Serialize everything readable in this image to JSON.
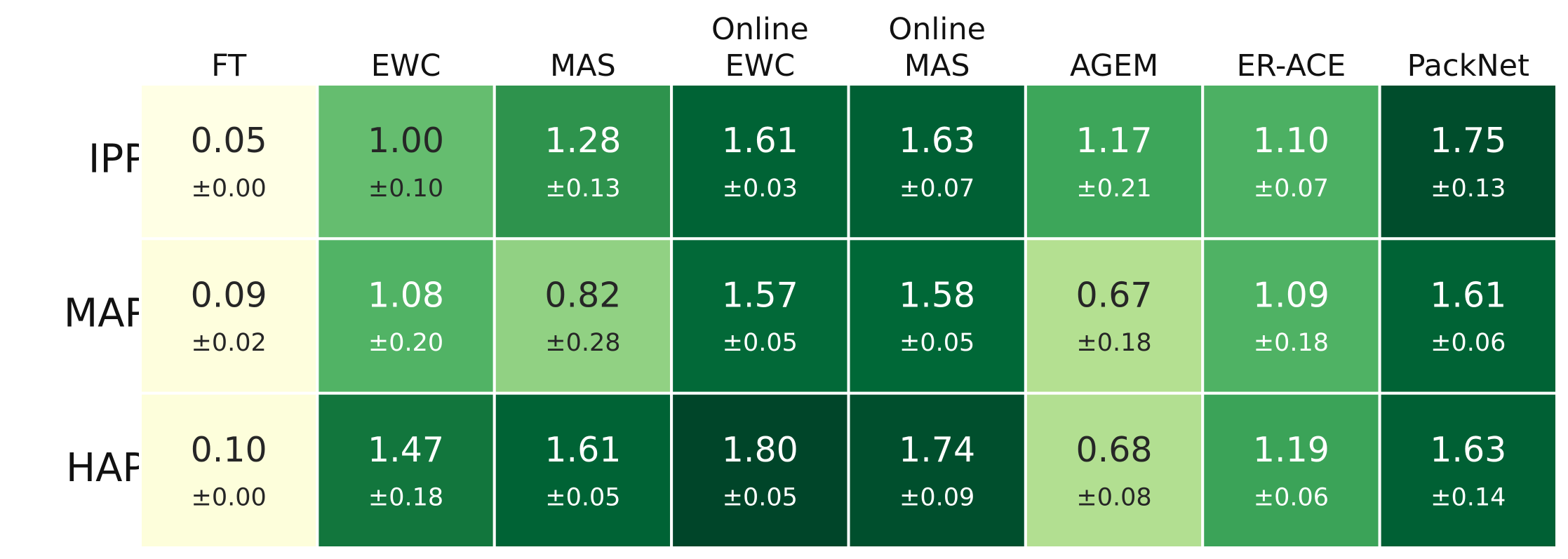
{
  "chart_data": {
    "type": "heatmap",
    "colormap": "YlGn",
    "x_categories": [
      "FT",
      "EWC",
      "MAS",
      "Online EWC",
      "Online MAS",
      "AGEM",
      "ER-ACE",
      "PackNet"
    ],
    "y_categories": [
      "IPPO",
      "MAPPO",
      "HAPPO"
    ],
    "values": [
      [
        0.05,
        1.0,
        1.28,
        1.61,
        1.63,
        1.17,
        1.1,
        1.75
      ],
      [
        0.09,
        1.08,
        0.82,
        1.57,
        1.58,
        0.67,
        1.09,
        1.61
      ],
      [
        0.1,
        1.47,
        1.61,
        1.8,
        1.74,
        0.68,
        1.19,
        1.63
      ]
    ],
    "value_labels": [
      [
        "0.05",
        "1.00",
        "1.28",
        "1.61",
        "1.63",
        "1.17",
        "1.10",
        "1.75"
      ],
      [
        "0.09",
        "1.08",
        "0.82",
        "1.57",
        "1.58",
        "0.67",
        "1.09",
        "1.61"
      ],
      [
        "0.10",
        "1.47",
        "1.61",
        "1.80",
        "1.74",
        "0.68",
        "1.19",
        "1.63"
      ]
    ],
    "errors": [
      [
        0.0,
        0.1,
        0.13,
        0.03,
        0.07,
        0.21,
        0.07,
        0.13
      ],
      [
        0.02,
        0.2,
        0.28,
        0.05,
        0.05,
        0.18,
        0.18,
        0.06
      ],
      [
        0.0,
        0.18,
        0.05,
        0.05,
        0.09,
        0.08,
        0.06,
        0.14
      ]
    ],
    "error_labels": [
      [
        "±0.00",
        "±0.10",
        "±0.13",
        "±0.03",
        "±0.07",
        "±0.21",
        "±0.07",
        "±0.13"
      ],
      [
        "±0.02",
        "±0.20",
        "±0.28",
        "±0.05",
        "±0.05",
        "±0.18",
        "±0.18",
        "±0.06"
      ],
      [
        "±0.00",
        "±0.18",
        "±0.05",
        "±0.05",
        "±0.09",
        "±0.08",
        "±0.06",
        "±0.14"
      ]
    ]
  }
}
